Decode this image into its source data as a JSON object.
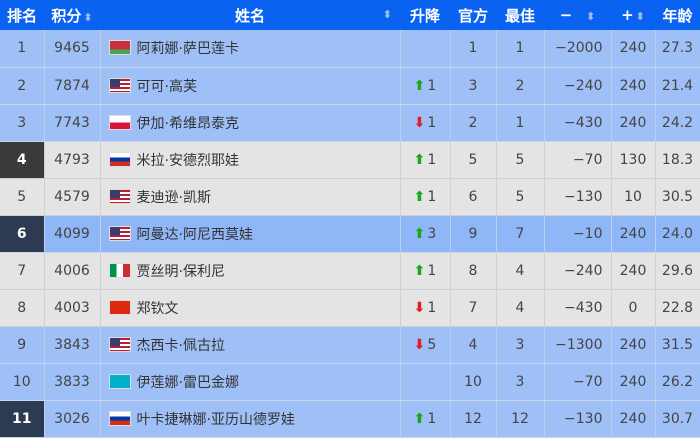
{
  "headers": {
    "rank": "排名",
    "points": "积分",
    "name": "姓名",
    "change": "升降",
    "official": "官方",
    "best": "最佳",
    "minus": "−",
    "plus": "+",
    "age": "年龄"
  },
  "flags": {
    "BLR": [
      "#c8313e",
      "#4aa657"
    ],
    "USA": "usa",
    "POL": [
      "#ffffff",
      "#dc143c"
    ],
    "RUS": [
      "#ffffff",
      "#0039a6",
      "#d52b1e"
    ],
    "ITA": [
      "#009246",
      "#ffffff",
      "#ce2b37"
    ],
    "CHN": "#de2910",
    "KAZ": "#00afca"
  },
  "rows": [
    {
      "rank": "1",
      "points": "9465",
      "flag": "BLR",
      "name": "阿莉娜·萨巴莲卡",
      "dir": "",
      "change": "",
      "official": "1",
      "best": "1",
      "minus": "−2000",
      "plus": "240",
      "age": "27.3",
      "style": "blue",
      "rank_style": ""
    },
    {
      "rank": "2",
      "points": "7874",
      "flag": "USA",
      "name": "可可·高芙",
      "dir": "up",
      "change": "1",
      "official": "3",
      "best": "2",
      "minus": "−240",
      "plus": "240",
      "age": "21.4",
      "style": "blue",
      "rank_style": ""
    },
    {
      "rank": "3",
      "points": "7743",
      "flag": "POL",
      "name": "伊加·希维昂泰克",
      "dir": "down",
      "change": "1",
      "official": "2",
      "best": "1",
      "minus": "−430",
      "plus": "240",
      "age": "24.2",
      "style": "blue",
      "rank_style": ""
    },
    {
      "rank": "4",
      "points": "4793",
      "flag": "RUS",
      "name": "米拉·安德烈耶娃",
      "dir": "up",
      "change": "1",
      "official": "5",
      "best": "5",
      "minus": "−70",
      "plus": "130",
      "age": "18.3",
      "style": "gray",
      "rank_style": "darkgray"
    },
    {
      "rank": "5",
      "points": "4579",
      "flag": "USA",
      "name": "麦迪逊·凯斯",
      "dir": "up",
      "change": "1",
      "official": "6",
      "best": "5",
      "minus": "−130",
      "plus": "10",
      "age": "30.5",
      "style": "gray",
      "rank_style": ""
    },
    {
      "rank": "6",
      "points": "4099",
      "flag": "USA",
      "name": "阿曼达·阿尼西莫娃",
      "dir": "up",
      "change": "3",
      "official": "9",
      "best": "7",
      "minus": "−10",
      "plus": "240",
      "age": "24.0",
      "style": "sel",
      "rank_style": "dark"
    },
    {
      "rank": "7",
      "points": "4006",
      "flag": "ITA",
      "name": "贾丝明·保利尼",
      "dir": "up",
      "change": "1",
      "official": "8",
      "best": "4",
      "minus": "−240",
      "plus": "240",
      "age": "29.6",
      "style": "gray",
      "rank_style": ""
    },
    {
      "rank": "8",
      "points": "4003",
      "flag": "CHN",
      "name": "郑钦文",
      "dir": "down",
      "change": "1",
      "official": "7",
      "best": "4",
      "minus": "−430",
      "plus": "0",
      "age": "22.8",
      "style": "gray",
      "rank_style": ""
    },
    {
      "rank": "9",
      "points": "3843",
      "flag": "USA",
      "name": "杰西卡·佩古拉",
      "dir": "down",
      "change": "5",
      "official": "4",
      "best": "3",
      "minus": "−1300",
      "plus": "240",
      "age": "31.5",
      "style": "blue",
      "rank_style": ""
    },
    {
      "rank": "10",
      "points": "3833",
      "flag": "KAZ",
      "name": "伊莲娜·雷巴金娜",
      "dir": "",
      "change": "",
      "official": "10",
      "best": "3",
      "minus": "−70",
      "plus": "240",
      "age": "26.2",
      "style": "blue",
      "rank_style": ""
    },
    {
      "rank": "11",
      "points": "3026",
      "flag": "RUS",
      "name": "叶卡捷琳娜·亚历山德罗娃",
      "dir": "up",
      "change": "1",
      "official": "12",
      "best": "12",
      "minus": "−130",
      "plus": "240",
      "age": "30.7",
      "style": "blue",
      "rank_style": "dark"
    }
  ]
}
